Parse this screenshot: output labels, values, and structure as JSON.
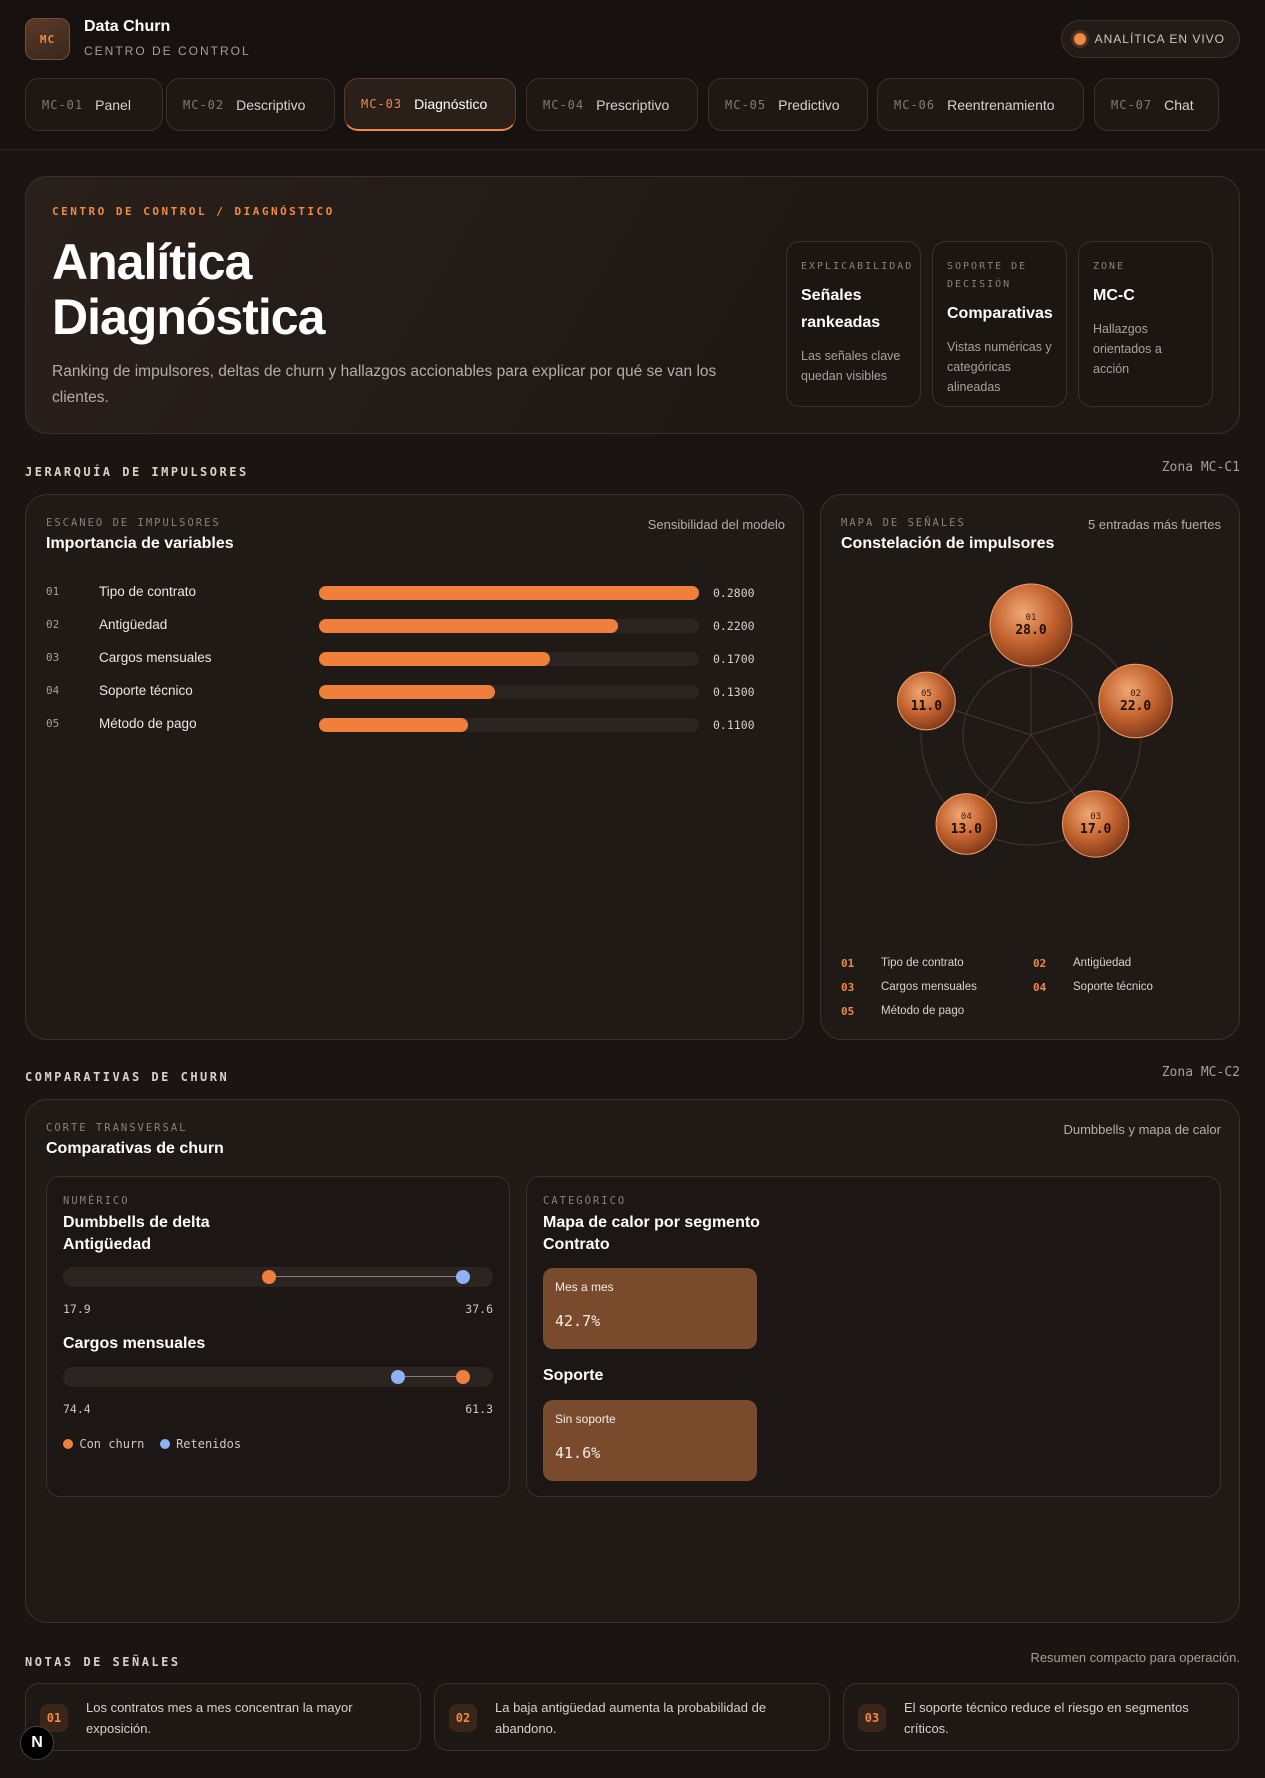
{
  "app": {
    "logo": "MC",
    "title": "Data Churn",
    "subtitle": "CENTRO DE CONTROL",
    "live_label": "ANALÍTICA EN VIVO"
  },
  "tabs": [
    {
      "code": "MC-01",
      "label": "Panel"
    },
    {
      "code": "MC-02",
      "label": "Descriptivo"
    },
    {
      "code": "MC-03",
      "label": "Diagnóstico"
    },
    {
      "code": "MC-04",
      "label": "Prescriptivo"
    },
    {
      "code": "MC-05",
      "label": "Predictivo"
    },
    {
      "code": "MC-06",
      "label": "Reentrenamiento"
    },
    {
      "code": "MC-07",
      "label": "Chat"
    }
  ],
  "active_tab": "MC-03",
  "hero": {
    "kicker": "CENTRO DE CONTROL / DIAGNÓSTICO",
    "title_line1": "Analítica",
    "title_line2": "Diagnóstica",
    "description": "Ranking de impulsores, deltas de churn y hallazgos accionables para explicar por qué se van los clientes.",
    "cards": [
      {
        "label": "EXPLICABILIDAD",
        "value": "Señales rankeadas",
        "desc": "Las señales clave quedan visibles"
      },
      {
        "label": "SOPORTE DE DECISIÓN",
        "value": "Comparativas",
        "desc": "Vistas numéricas y categóricas alineadas"
      },
      {
        "label": "ZONE",
        "value": "MC-C",
        "desc": "Hallazgos orientados a acción"
      }
    ]
  },
  "drivers_section": {
    "title": "JERARQUÍA DE IMPULSORES",
    "zone": "Zona MC-C1"
  },
  "importance": {
    "label": "ESCANEO DE IMPULSORES",
    "title": "Importancia de variables",
    "note": "Sensibilidad del modelo"
  },
  "constellation": {
    "label": "MAPA DE SEÑALES",
    "title": "Constelación de impulsores",
    "note": "5 entradas más fuertes"
  },
  "chart_data": {
    "type": "bar",
    "orientation": "horizontal",
    "categories": [
      "Tipo de contrato",
      "Antigüedad",
      "Cargos mensuales",
      "Soporte técnico",
      "Método de pago"
    ],
    "ranks": [
      "01",
      "02",
      "03",
      "04",
      "05"
    ],
    "values": [
      0.28,
      0.22,
      0.17,
      0.13,
      0.11
    ],
    "value_labels": [
      "0.2800",
      "0.2200",
      "0.1700",
      "0.1300",
      "0.1100"
    ],
    "bubble_labels": [
      "28.0",
      "22.0",
      "17.0",
      "13.0",
      "11.0"
    ],
    "xlim": [
      0,
      0.28
    ],
    "color": "#ef7f3a"
  },
  "comparatives_section": {
    "title": "COMPARATIVAS DE CHURN",
    "zone": "Zona MC-C2"
  },
  "comparatives": {
    "label": "CORTE TRANSVERSAL",
    "title": "Comparativas de churn",
    "note": "Dumbbells y mapa de calor",
    "numeric": {
      "label": "NUMÉRICO",
      "title": "Dumbbells de delta",
      "items": [
        {
          "name": "Antigüedad",
          "churn": 17.9,
          "retained": 37.6,
          "left_label": "17.9",
          "right_label": "37.6",
          "churn_pos": 0.48,
          "retained_pos": 0.93
        },
        {
          "name": "Cargos mensuales",
          "churn": 74.4,
          "retained": 61.3,
          "left_label": "74.4",
          "right_label": "61.3",
          "churn_pos": 0.93,
          "retained_pos": 0.78
        }
      ],
      "legend": [
        {
          "label": "Con churn",
          "color": "#ef7f3a"
        },
        {
          "label": "Retenidos",
          "color": "#8fb2f5"
        }
      ]
    },
    "categorical": {
      "label": "CATEGÓRICO",
      "title": "Mapa de calor por segmento",
      "groups": [
        {
          "name": "Contrato",
          "cell_label": "Mes a mes",
          "cell_value": "42.7%"
        },
        {
          "name": "Soporte",
          "cell_label": "Sin soporte",
          "cell_value": "41.6%"
        }
      ]
    }
  },
  "notes_section": {
    "title": "NOTAS DE SEÑALES",
    "summary": "Resumen compacto para operación."
  },
  "notes": [
    {
      "num": "01",
      "text": "Los contratos mes a mes concentran la mayor exposición."
    },
    {
      "num": "02",
      "text": "La baja antigüedad aumenta la probabilidad de abandono."
    },
    {
      "num": "03",
      "text": "El soporte técnico reduce el riesgo en segmentos críticos."
    }
  ],
  "corner_badge": "N"
}
